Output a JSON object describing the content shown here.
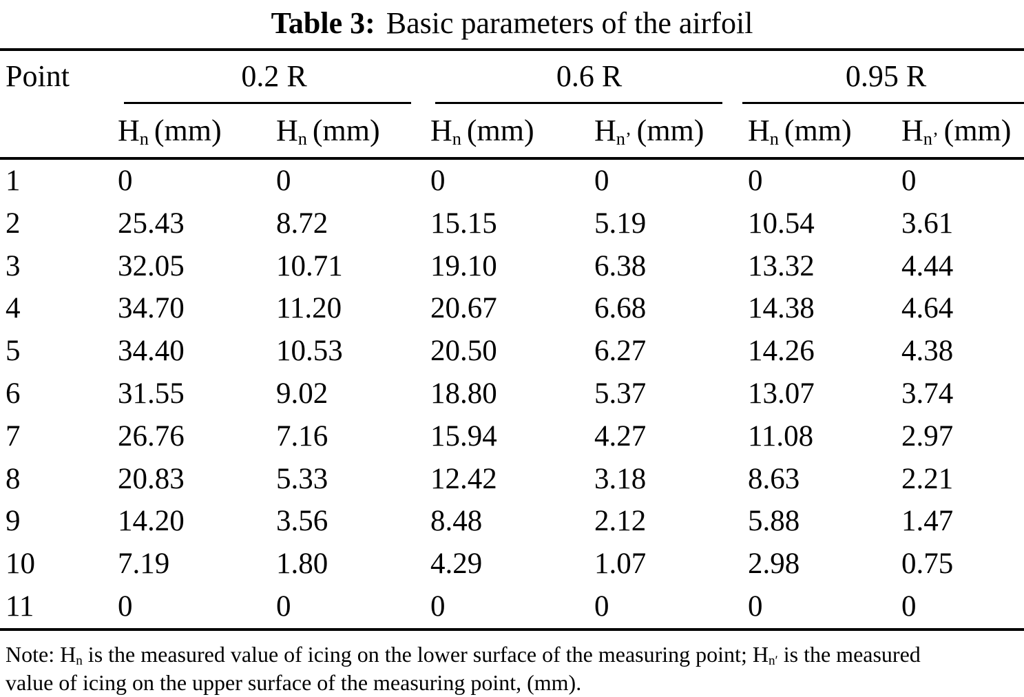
{
  "title": {
    "label": "Table 3:",
    "text": "Basic parameters of the airfoil"
  },
  "table": {
    "point_header": "Point",
    "groups": [
      {
        "label": "0.2 R"
      },
      {
        "label": "0.6 R"
      },
      {
        "label": "0.95 R"
      }
    ],
    "columns": [
      {
        "h": "H",
        "sub": "n",
        "unit": "(mm)"
      },
      {
        "h": "H",
        "sub": "n",
        "unit": "(mm)"
      },
      {
        "h": "H",
        "sub": "n",
        "unit": "(mm)"
      },
      {
        "h": "H",
        "sub": "n’",
        "unit": "(mm)"
      },
      {
        "h": "H",
        "sub": "n",
        "unit": "(mm)"
      },
      {
        "h": "H",
        "sub": "n’",
        "unit": "(mm)"
      }
    ],
    "rows": [
      {
        "point": "1",
        "values": [
          "0",
          "0",
          "0",
          "0",
          "0",
          "0"
        ]
      },
      {
        "point": "2",
        "values": [
          "25.43",
          "8.72",
          "15.15",
          "5.19",
          "10.54",
          "3.61"
        ]
      },
      {
        "point": "3",
        "values": [
          "32.05",
          "10.71",
          "19.10",
          "6.38",
          "13.32",
          "4.44"
        ]
      },
      {
        "point": "4",
        "values": [
          "34.70",
          "11.20",
          "20.67",
          "6.68",
          "14.38",
          "4.64"
        ]
      },
      {
        "point": "5",
        "values": [
          "34.40",
          "10.53",
          "20.50",
          "6.27",
          "14.26",
          "4.38"
        ]
      },
      {
        "point": "6",
        "values": [
          "31.55",
          "9.02",
          "18.80",
          "5.37",
          "13.07",
          "3.74"
        ]
      },
      {
        "point": "7",
        "values": [
          "26.76",
          "7.16",
          "15.94",
          "4.27",
          "11.08",
          "2.97"
        ]
      },
      {
        "point": "8",
        "values": [
          "20.83",
          "5.33",
          "12.42",
          "3.18",
          "8.63",
          "2.21"
        ]
      },
      {
        "point": "9",
        "values": [
          "14.20",
          "3.56",
          "8.48",
          "2.12",
          "5.88",
          "1.47"
        ]
      },
      {
        "point": "10",
        "values": [
          "7.19",
          "1.80",
          "4.29",
          "1.07",
          "2.98",
          "0.75"
        ]
      },
      {
        "point": "11",
        "values": [
          "0",
          "0",
          "0",
          "0",
          "0",
          "0"
        ]
      }
    ]
  },
  "note": {
    "prefix": "Note: H",
    "sub1": "n",
    "middle": " is the measured value of icing on the lower surface of the measuring point; H",
    "sub2": "n′",
    "line1_end": " is the measured",
    "line2": "value of icing on the upper surface of the measuring point, (mm)."
  }
}
